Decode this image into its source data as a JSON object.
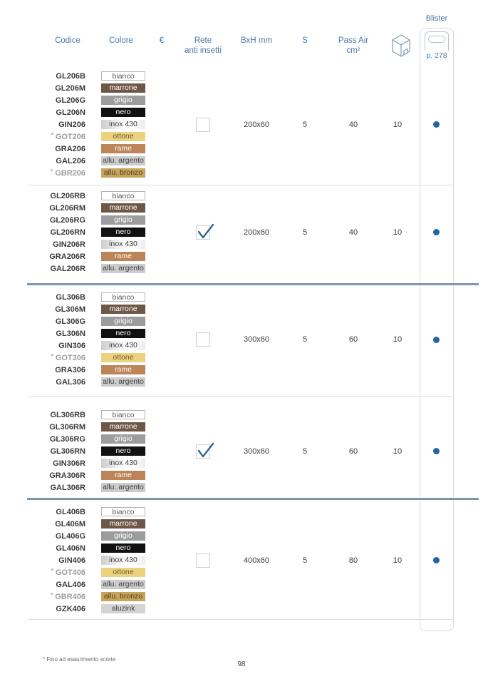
{
  "colors": {
    "header_blue": "#4a77a8",
    "dot_blue": "#2164a5",
    "check_blue": "#2d6191",
    "separator_blue": "#7e96ab",
    "separator_light": "#d8dbdd",
    "muted_code_gray": "#9c9c9c"
  },
  "header": {
    "codice": "Codice",
    "colore": "Colore",
    "euro": "€",
    "rete_line1": "Rete",
    "rete_line2": "anti insetti",
    "bxh": "BxH mm",
    "s": "S",
    "pass_air": "Pass Air cm²",
    "blister": "Blister",
    "blister_page": "p. 278",
    "box_icon": "carton-box-icon",
    "blister_icon": "blister-pack-icon"
  },
  "swatches": {
    "bianco": {
      "bg": "#ffffff",
      "text": "#5a5a5a",
      "border": "#b4b4b4"
    },
    "marrone": {
      "bg": "#6e5747",
      "text": "#ffffff"
    },
    "grigio": {
      "bg": "#9c9c9c",
      "text": "#ffffff"
    },
    "nero": {
      "bg": "#111111",
      "text": "#ffffff"
    },
    "inox430": {
      "bg": "linear-gradient(90deg,#cdcdcd 0%,#f7f7f7 45%,#ffffff 70%,#ececec 100%)",
      "text": "#3c3c3c"
    },
    "ottone": {
      "bg": "#ecd17f",
      "text": "#6b5b33"
    },
    "rame": {
      "bg": "#bc8458",
      "text": "#ffffff"
    },
    "argento": {
      "bg": "#cccccc",
      "text": "#3c3c3c"
    },
    "bronzo": {
      "bg": "#c7a35b",
      "text": "#4f3f20"
    },
    "aluzink": {
      "bg": "#d4d4d4",
      "text": "#3c3c3c"
    }
  },
  "groups": [
    {
      "rows": [
        {
          "code": "GL206B",
          "asterisk": false,
          "muted": false,
          "color_label": "bianco",
          "swatch": "bianco"
        },
        {
          "code": "GL206M",
          "asterisk": false,
          "muted": false,
          "color_label": "marrone",
          "swatch": "marrone"
        },
        {
          "code": "GL206G",
          "asterisk": false,
          "muted": false,
          "color_label": "grigio",
          "swatch": "grigio"
        },
        {
          "code": "GL206N",
          "asterisk": false,
          "muted": false,
          "color_label": "nero",
          "swatch": "nero"
        },
        {
          "code": "GIN206",
          "asterisk": false,
          "muted": false,
          "color_label": "inox 430",
          "swatch": "inox430"
        },
        {
          "code": "GOT206",
          "asterisk": true,
          "muted": true,
          "color_label": "ottone",
          "swatch": "ottone"
        },
        {
          "code": "GRA206",
          "asterisk": false,
          "muted": false,
          "color_label": "rame",
          "swatch": "rame"
        },
        {
          "code": "GAL206",
          "asterisk": false,
          "muted": false,
          "color_label": "allu. argento",
          "swatch": "argento"
        },
        {
          "code": "GBR206",
          "asterisk": true,
          "muted": true,
          "color_label": "allu. bronzo",
          "swatch": "bronzo"
        }
      ],
      "rete_checked": false,
      "bxh": "200x60",
      "s": "5",
      "pass_air": "40",
      "qty": "10",
      "blister_dot": true
    },
    {
      "rows": [
        {
          "code": "GL206RB",
          "asterisk": false,
          "muted": false,
          "color_label": "bianco",
          "swatch": "bianco"
        },
        {
          "code": "GL206RM",
          "asterisk": false,
          "muted": false,
          "color_label": "marrone",
          "swatch": "marrone"
        },
        {
          "code": "GL206RG",
          "asterisk": false,
          "muted": false,
          "color_label": "grigio",
          "swatch": "grigio"
        },
        {
          "code": "GL206RN",
          "asterisk": false,
          "muted": false,
          "color_label": "nero",
          "swatch": "nero"
        },
        {
          "code": "GIN206R",
          "asterisk": false,
          "muted": false,
          "color_label": "inox 430",
          "swatch": "inox430"
        },
        {
          "code": "GRA206R",
          "asterisk": false,
          "muted": false,
          "color_label": "rame",
          "swatch": "rame"
        },
        {
          "code": "GAL206R",
          "asterisk": false,
          "muted": false,
          "color_label": "allu. argento",
          "swatch": "argento"
        }
      ],
      "rete_checked": true,
      "bxh": "200x60",
      "s": "5",
      "pass_air": "40",
      "qty": "10",
      "blister_dot": true
    },
    {
      "rows": [
        {
          "code": "GL306B",
          "asterisk": false,
          "muted": false,
          "color_label": "bianco",
          "swatch": "bianco"
        },
        {
          "code": "GL306M",
          "asterisk": false,
          "muted": false,
          "color_label": "marrone",
          "swatch": "marrone"
        },
        {
          "code": "GL306G",
          "asterisk": false,
          "muted": false,
          "color_label": "grigio",
          "swatch": "grigio"
        },
        {
          "code": "GL306N",
          "asterisk": false,
          "muted": false,
          "color_label": "nero",
          "swatch": "nero"
        },
        {
          "code": "GIN306",
          "asterisk": false,
          "muted": false,
          "color_label": "inox 430",
          "swatch": "inox430"
        },
        {
          "code": "GOT306",
          "asterisk": true,
          "muted": true,
          "color_label": "ottone",
          "swatch": "ottone"
        },
        {
          "code": "GRA306",
          "asterisk": false,
          "muted": false,
          "color_label": "rame",
          "swatch": "rame"
        },
        {
          "code": "GAL306",
          "asterisk": false,
          "muted": false,
          "color_label": "allu. argento",
          "swatch": "argento"
        }
      ],
      "rete_checked": false,
      "bxh": "300x60",
      "s": "5",
      "pass_air": "60",
      "qty": "10",
      "blister_dot": true
    },
    {
      "rows": [
        {
          "code": "GL306RB",
          "asterisk": false,
          "muted": false,
          "color_label": "bianco",
          "swatch": "bianco"
        },
        {
          "code": "GL306RM",
          "asterisk": false,
          "muted": false,
          "color_label": "marrone",
          "swatch": "marrone"
        },
        {
          "code": "GL306RG",
          "asterisk": false,
          "muted": false,
          "color_label": "grigio",
          "swatch": "grigio"
        },
        {
          "code": "GL306RN",
          "asterisk": false,
          "muted": false,
          "color_label": "nero",
          "swatch": "nero"
        },
        {
          "code": "GIN306R",
          "asterisk": false,
          "muted": false,
          "color_label": "inox 430",
          "swatch": "inox430"
        },
        {
          "code": "GRA306R",
          "asterisk": false,
          "muted": false,
          "color_label": "rame",
          "swatch": "rame"
        },
        {
          "code": "GAL306R",
          "asterisk": false,
          "muted": false,
          "color_label": "allu. argento",
          "swatch": "argento"
        }
      ],
      "rete_checked": true,
      "bxh": "300x60",
      "s": "5",
      "pass_air": "60",
      "qty": "10",
      "blister_dot": true
    },
    {
      "rows": [
        {
          "code": "GL406B",
          "asterisk": false,
          "muted": false,
          "color_label": "bianco",
          "swatch": "bianco"
        },
        {
          "code": "GL406M",
          "asterisk": false,
          "muted": false,
          "color_label": "marrone",
          "swatch": "marrone"
        },
        {
          "code": "GL406G",
          "asterisk": false,
          "muted": false,
          "color_label": "grigio",
          "swatch": "grigio"
        },
        {
          "code": "GL406N",
          "asterisk": false,
          "muted": false,
          "color_label": "nero",
          "swatch": "nero"
        },
        {
          "code": "GIN406",
          "asterisk": false,
          "muted": false,
          "color_label": "inox 430",
          "swatch": "inox430"
        },
        {
          "code": "GOT406",
          "asterisk": true,
          "muted": true,
          "color_label": "ottone",
          "swatch": "ottone"
        },
        {
          "code": "GAL406",
          "asterisk": false,
          "muted": false,
          "color_label": "allu. argento",
          "swatch": "argento"
        },
        {
          "code": "GBR406",
          "asterisk": true,
          "muted": true,
          "color_label": "allu. bronzo",
          "swatch": "bronzo"
        },
        {
          "code": "GZK406",
          "asterisk": false,
          "muted": false,
          "color_label": "aluzink",
          "swatch": "aluzink"
        }
      ],
      "rete_checked": false,
      "bxh": "400x60",
      "s": "5",
      "pass_air": "80",
      "qty": "10",
      "blister_dot": true
    }
  ],
  "footer": {
    "note": "* Fino ad esaurimento scorte",
    "page_number": "98"
  }
}
